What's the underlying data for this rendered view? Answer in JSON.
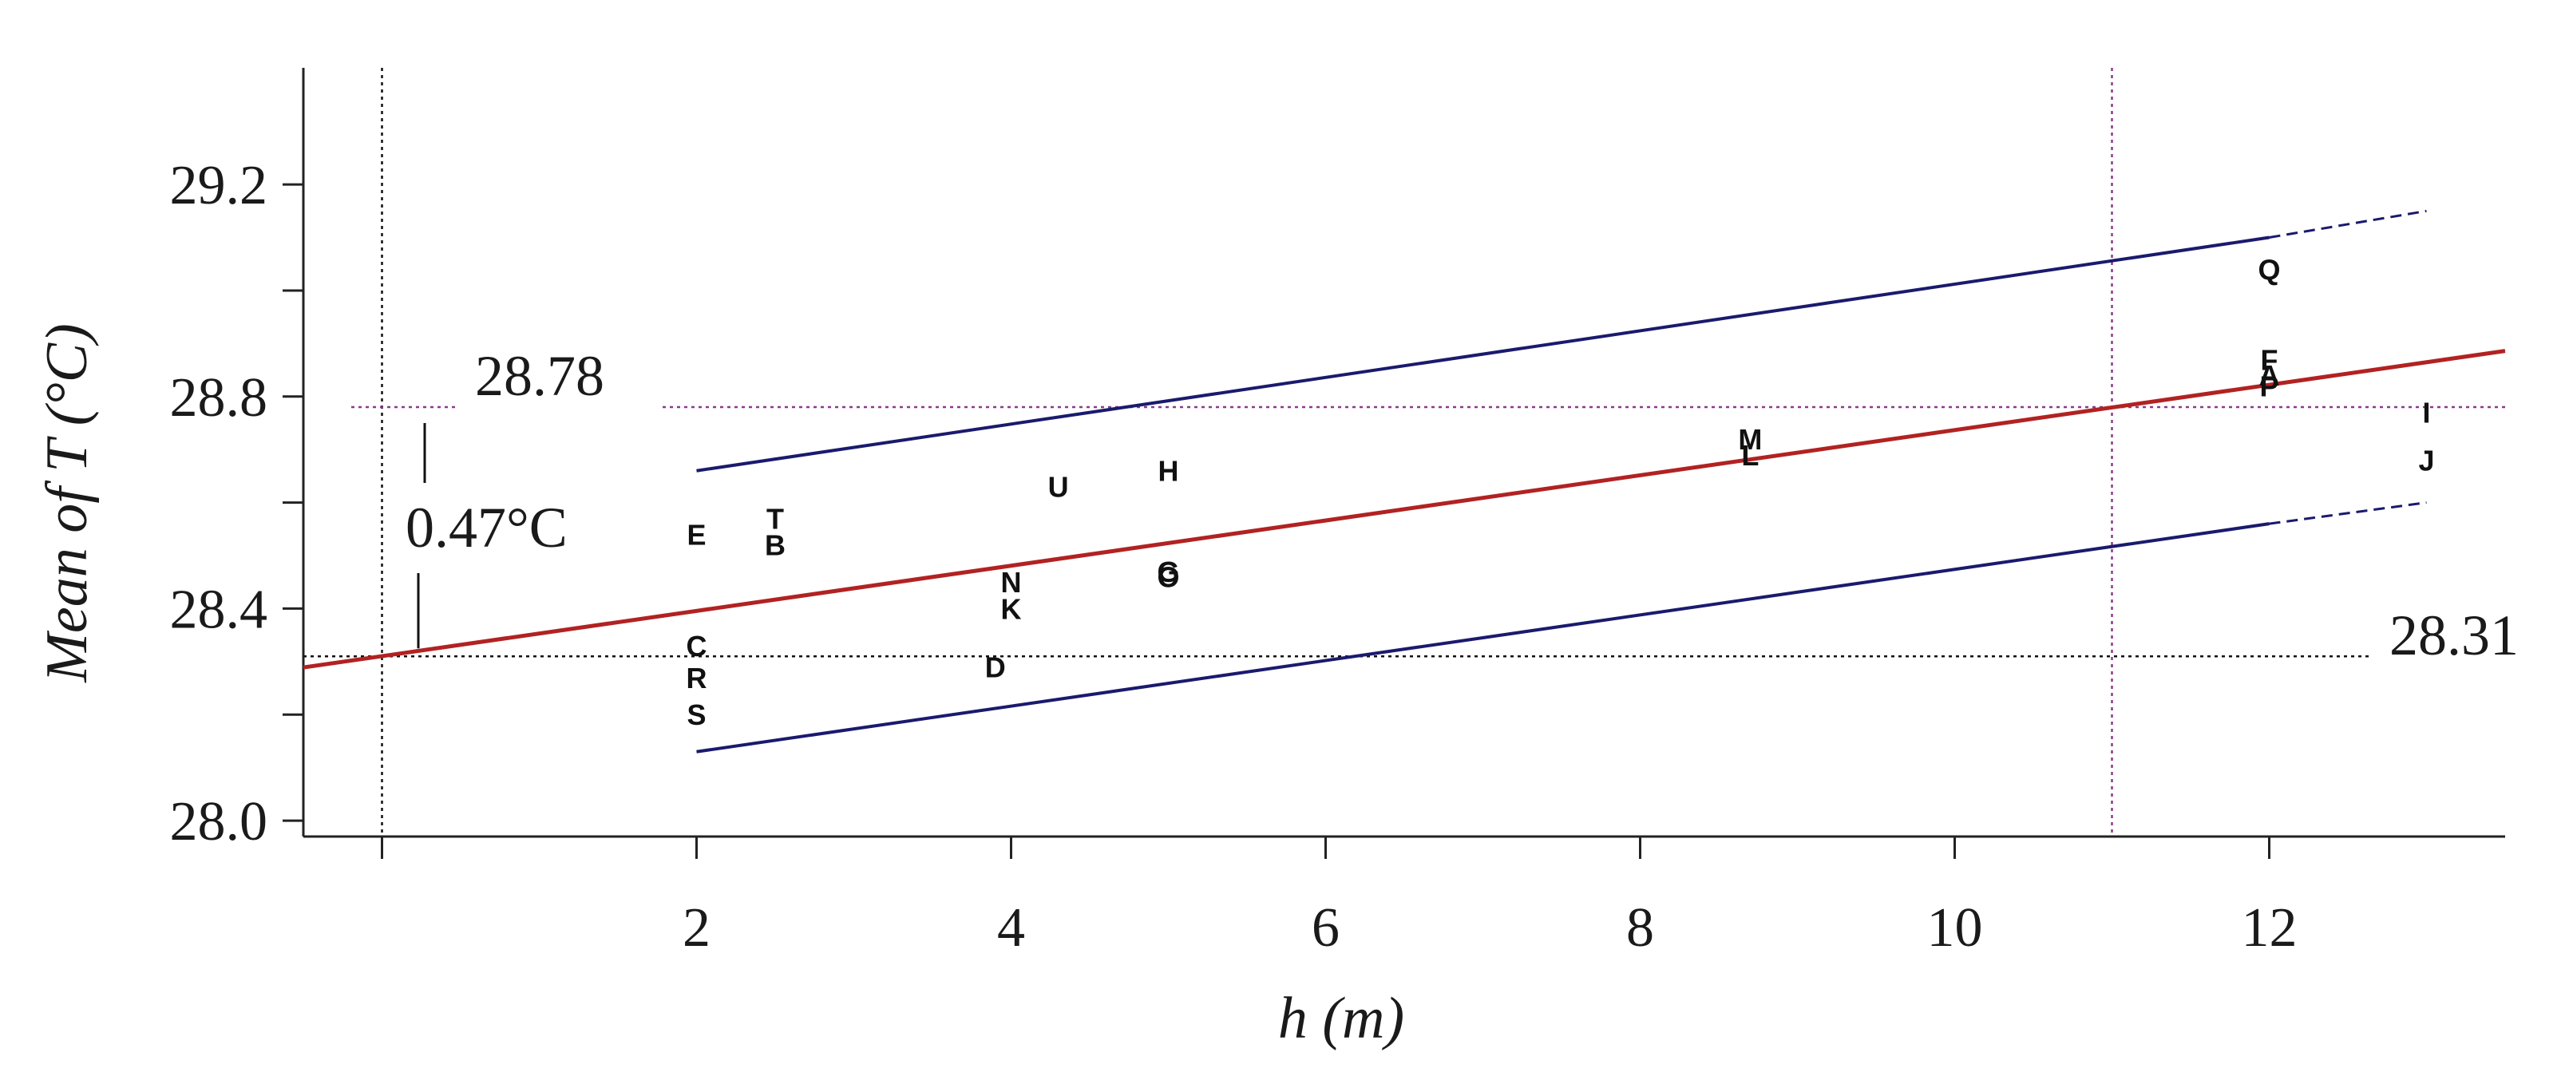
{
  "chart_data": {
    "type": "scatter",
    "xlabel": "h (m)",
    "ylabel": "Mean of T (°C)",
    "xlim": [
      -0.5,
      13.5
    ],
    "ylim": [
      27.97,
      29.42
    ],
    "xticks": [
      0,
      2,
      4,
      6,
      8,
      10,
      12
    ],
    "xtick_labels": [
      "2",
      "4",
      "6",
      "8",
      "10",
      "12"
    ],
    "yticks": [
      28.0,
      28.2,
      28.4,
      28.6,
      28.8,
      29.0,
      29.2
    ],
    "ytick_labels": [
      "28.0",
      "28.4",
      "28.8",
      "29.2"
    ],
    "points": [
      {
        "label": "E",
        "x": 2.0,
        "y": 28.54
      },
      {
        "label": "T",
        "x": 2.5,
        "y": 28.57
      },
      {
        "label": "B",
        "x": 2.5,
        "y": 28.52
      },
      {
        "label": "C",
        "x": 2.0,
        "y": 28.33
      },
      {
        "label": "R",
        "x": 2.0,
        "y": 28.27
      },
      {
        "label": "S",
        "x": 2.0,
        "y": 28.2
      },
      {
        "label": "N",
        "x": 4.0,
        "y": 28.45
      },
      {
        "label": "K",
        "x": 4.0,
        "y": 28.4
      },
      {
        "label": "D",
        "x": 3.9,
        "y": 28.29
      },
      {
        "label": "U",
        "x": 4.3,
        "y": 28.63
      },
      {
        "label": "H",
        "x": 5.0,
        "y": 28.66
      },
      {
        "label": "G",
        "x": 5.0,
        "y": 28.47
      },
      {
        "label": "O",
        "x": 5.0,
        "y": 28.46
      },
      {
        "label": "M",
        "x": 8.7,
        "y": 28.72
      },
      {
        "label": "L",
        "x": 8.7,
        "y": 28.69
      },
      {
        "label": "Q",
        "x": 12.0,
        "y": 29.04
      },
      {
        "label": "F",
        "x": 12.0,
        "y": 28.87
      },
      {
        "label": "A",
        "x": 12.0,
        "y": 28.84
      },
      {
        "label": "P",
        "x": 12.0,
        "y": 28.82
      },
      {
        "label": "I",
        "x": 13.0,
        "y": 28.77
      },
      {
        "label": "J",
        "x": 13.0,
        "y": 28.68
      }
    ],
    "fit_line": {
      "x": [
        -0.5,
        13.5
      ],
      "y": [
        28.289,
        28.886
      ],
      "color": "#b22222"
    },
    "upper_band": {
      "x": [
        2.0,
        12.0,
        13.0
      ],
      "y": [
        28.66,
        29.1,
        29.15
      ],
      "color": "#1a1a6e"
    },
    "lower_band": {
      "x": [
        2.0,
        12.0,
        13.0
      ],
      "y": [
        28.13,
        28.56,
        28.6
      ],
      "color": "#1a1a6e"
    },
    "ref_lines": {
      "vertical_black_x": 0,
      "vertical_purple_x": 11,
      "horizontal_purple_y": 28.78,
      "horizontal_black_y": 28.31,
      "purple_color": "#8b3a8b"
    },
    "annotations": {
      "upper_value": "28.78",
      "lower_value": "28.31",
      "difference": "0.47°C"
    }
  }
}
